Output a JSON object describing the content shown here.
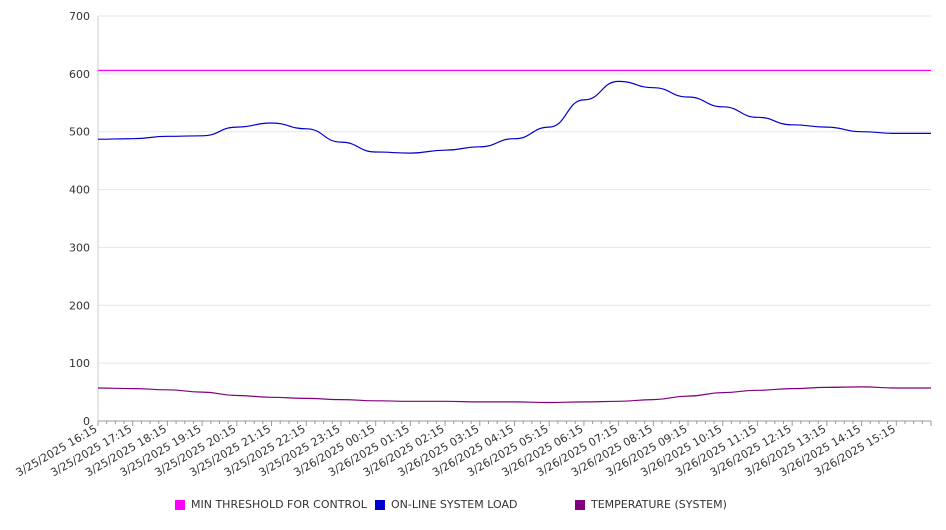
{
  "chart_data": {
    "type": "line",
    "title": "",
    "xlabel": "",
    "ylabel": "",
    "ylim": [
      0,
      700
    ],
    "yticks": [
      "0",
      "100",
      "200",
      "300",
      "400",
      "500",
      "600",
      "700"
    ],
    "grid": true,
    "legend_position": "bottom",
    "categories": [
      "3/25/2025 16:15",
      "3/25/2025 17:15",
      "3/25/2025 18:15",
      "3/25/2025 19:15",
      "3/25/2025 20:15",
      "3/25/2025 21:15",
      "3/25/2025 22:15",
      "3/25/2025 23:15",
      "3/26/2025 00:15",
      "3/26/2025 01:15",
      "3/26/2025 02:15",
      "3/26/2025 03:15",
      "3/26/2025 04:15",
      "3/26/2025 05:15",
      "3/26/2025 06:15",
      "3/26/2025 07:15",
      "3/26/2025 08:15",
      "3/26/2025 09:15",
      "3/26/2025 10:15",
      "3/26/2025 11:15",
      "3/26/2025 12:15",
      "3/26/2025 13:15",
      "3/26/2025 14:15",
      "3/26/2025 15:15"
    ],
    "series": [
      {
        "name": "MIN THRESHOLD FOR CONTROL",
        "color": "#ff00ff",
        "values": [
          606,
          606,
          606,
          606,
          606,
          606,
          606,
          606,
          606,
          606,
          606,
          606,
          606,
          606,
          606,
          606,
          606,
          606,
          606,
          606,
          606,
          606,
          606,
          606
        ]
      },
      {
        "name": "ON-LINE SYSTEM LOAD",
        "color": "#0000cc",
        "values": [
          487,
          488,
          492,
          493,
          508,
          515,
          505,
          482,
          465,
          463,
          468,
          474,
          488,
          508,
          555,
          587,
          576,
          560,
          543,
          525,
          512,
          508,
          500,
          497
        ]
      },
      {
        "name": "TEMPERATURE (SYSTEM)",
        "color": "#800080",
        "values": [
          57,
          56,
          54,
          50,
          44,
          41,
          39,
          37,
          35,
          34,
          34,
          33,
          33,
          32,
          33,
          34,
          37,
          43,
          49,
          53,
          56,
          58,
          59,
          57
        ]
      }
    ]
  }
}
